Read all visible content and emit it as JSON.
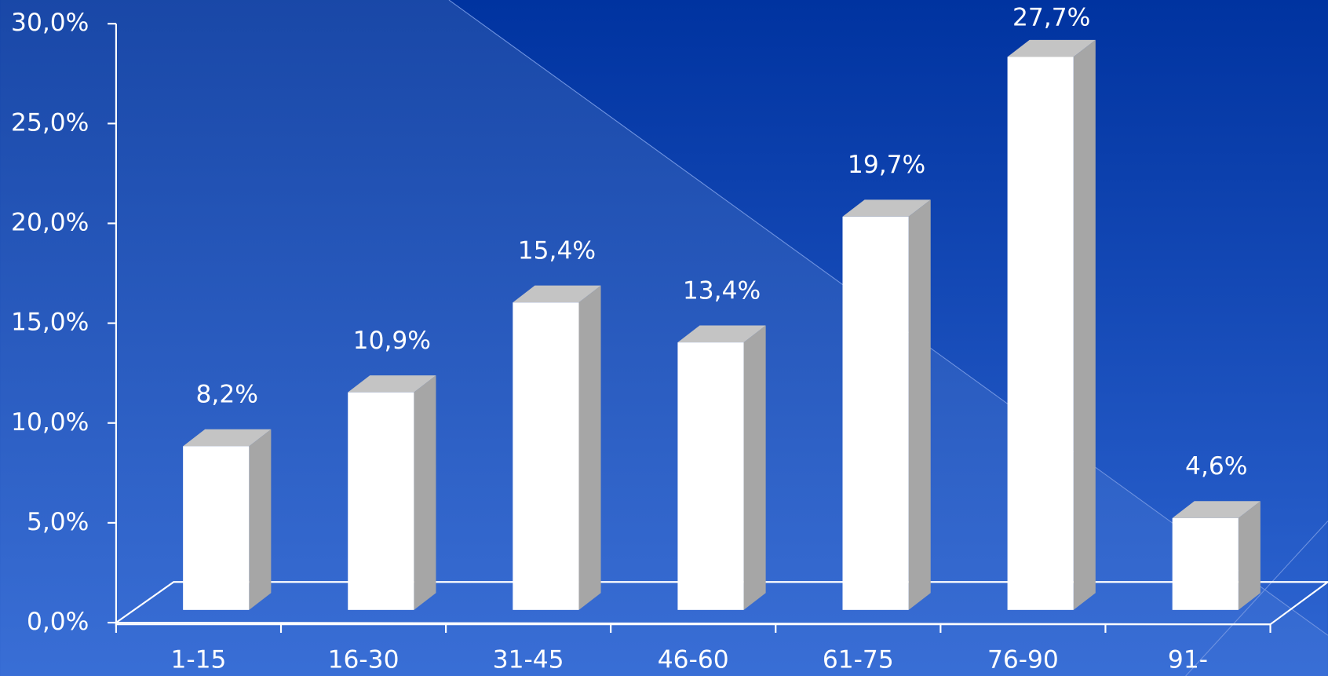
{
  "chart_data": {
    "type": "bar3d",
    "categories": [
      "1-15",
      "16-30",
      "31-45",
      "46-60",
      "61-75",
      "76-90",
      "91-"
    ],
    "values": [
      8.2,
      10.9,
      15.4,
      13.4,
      19.7,
      27.7,
      4.6
    ],
    "value_labels": [
      "8,2%",
      "10,9%",
      "15,4%",
      "13,4%",
      "19,7%",
      "27,7%",
      "4,6%"
    ],
    "color": "#ffffff",
    "ylim": [
      0,
      30
    ],
    "yticks": [
      {
        "value": 0,
        "label": "0,0%"
      },
      {
        "value": 5,
        "label": "5,0%"
      },
      {
        "value": 10,
        "label": "10,0%"
      },
      {
        "value": 15,
        "label": "15,0%"
      },
      {
        "value": 20,
        "label": "20,0%"
      },
      {
        "value": 25,
        "label": "25,0%"
      },
      {
        "value": 30,
        "label": "30,0%"
      }
    ]
  }
}
